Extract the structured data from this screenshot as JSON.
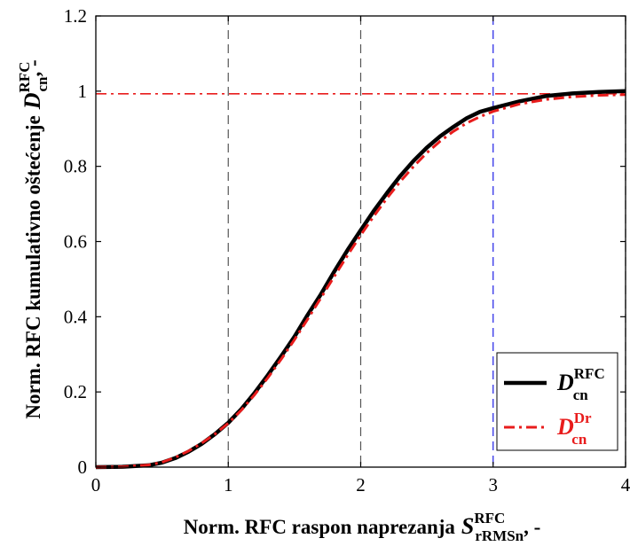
{
  "chart_data": {
    "type": "line",
    "xlim": [
      0,
      4
    ],
    "ylim": [
      0,
      1.2
    ],
    "x_ticks": [
      "0",
      "1",
      "2",
      "3",
      "4"
    ],
    "y_ticks": [
      "0",
      "0.2",
      "0.4",
      "0.6",
      "0.8",
      "1",
      "1.2"
    ],
    "xlabel": {
      "prefix": "Norm. RFC raspon naprezanja",
      "symbol": "S",
      "sup": "RFC",
      "sub": "rRMSn",
      "suffix": ", -"
    },
    "ylabel": {
      "prefix": "Norm. RFC kumulativno oštećenje",
      "symbol": "D",
      "sup": "RFC",
      "sub": "cn",
      "suffix": ", -"
    },
    "grid": false,
    "reference_lines": [
      {
        "axis": "x",
        "value": 1,
        "color": "#555555",
        "style": "dashed"
      },
      {
        "axis": "x",
        "value": 2,
        "color": "#555555",
        "style": "dashed"
      },
      {
        "axis": "x",
        "value": 3,
        "color": "#1f1fe6",
        "style": "dashed"
      },
      {
        "axis": "x",
        "value": 4,
        "color": "#555555",
        "style": "dashed"
      },
      {
        "axis": "y",
        "value": 0.993,
        "color": "#e81c1c",
        "style": "dashdot"
      }
    ],
    "legend_position": "bottom-right",
    "series": [
      {
        "name": "D^RFC_cn",
        "legend": {
          "symbol": "D",
          "sup": "RFC",
          "sub": "cn"
        },
        "color": "#000000",
        "style": "solid",
        "x": [
          0,
          0.2,
          0.4,
          0.5,
          0.6,
          0.7,
          0.8,
          0.9,
          1.0,
          1.1,
          1.2,
          1.3,
          1.4,
          1.5,
          1.6,
          1.7,
          1.8,
          1.9,
          2.0,
          2.1,
          2.2,
          2.3,
          2.4,
          2.5,
          2.6,
          2.7,
          2.8,
          2.9,
          3.0,
          3.2,
          3.4,
          3.6,
          3.8,
          4.0
        ],
        "y": [
          0,
          0.001,
          0.005,
          0.012,
          0.024,
          0.041,
          0.062,
          0.088,
          0.118,
          0.155,
          0.198,
          0.245,
          0.295,
          0.347,
          0.405,
          0.46,
          0.52,
          0.577,
          0.63,
          0.682,
          0.73,
          0.775,
          0.815,
          0.85,
          0.88,
          0.905,
          0.928,
          0.945,
          0.955,
          0.973,
          0.987,
          0.994,
          0.998,
          1.0
        ]
      },
      {
        "name": "D^Dr_cn",
        "legend": {
          "symbol": "D",
          "sup": "Dr",
          "sub": "cn"
        },
        "color": "#e81c1c",
        "style": "dashdot",
        "x": [
          0,
          0.2,
          0.4,
          0.5,
          0.6,
          0.7,
          0.8,
          0.9,
          1.0,
          1.1,
          1.2,
          1.3,
          1.4,
          1.5,
          1.6,
          1.7,
          1.8,
          1.9,
          2.0,
          2.1,
          2.2,
          2.3,
          2.4,
          2.5,
          2.6,
          2.7,
          2.8,
          2.9,
          3.0,
          3.2,
          3.4,
          3.6,
          3.8,
          4.0
        ],
        "y": [
          0,
          0.001,
          0.006,
          0.013,
          0.026,
          0.043,
          0.064,
          0.088,
          0.117,
          0.152,
          0.193,
          0.238,
          0.287,
          0.339,
          0.394,
          0.45,
          0.507,
          0.563,
          0.617,
          0.668,
          0.716,
          0.76,
          0.8,
          0.836,
          0.867,
          0.893,
          0.915,
          0.932,
          0.946,
          0.966,
          0.978,
          0.985,
          0.989,
          0.991
        ]
      }
    ]
  }
}
